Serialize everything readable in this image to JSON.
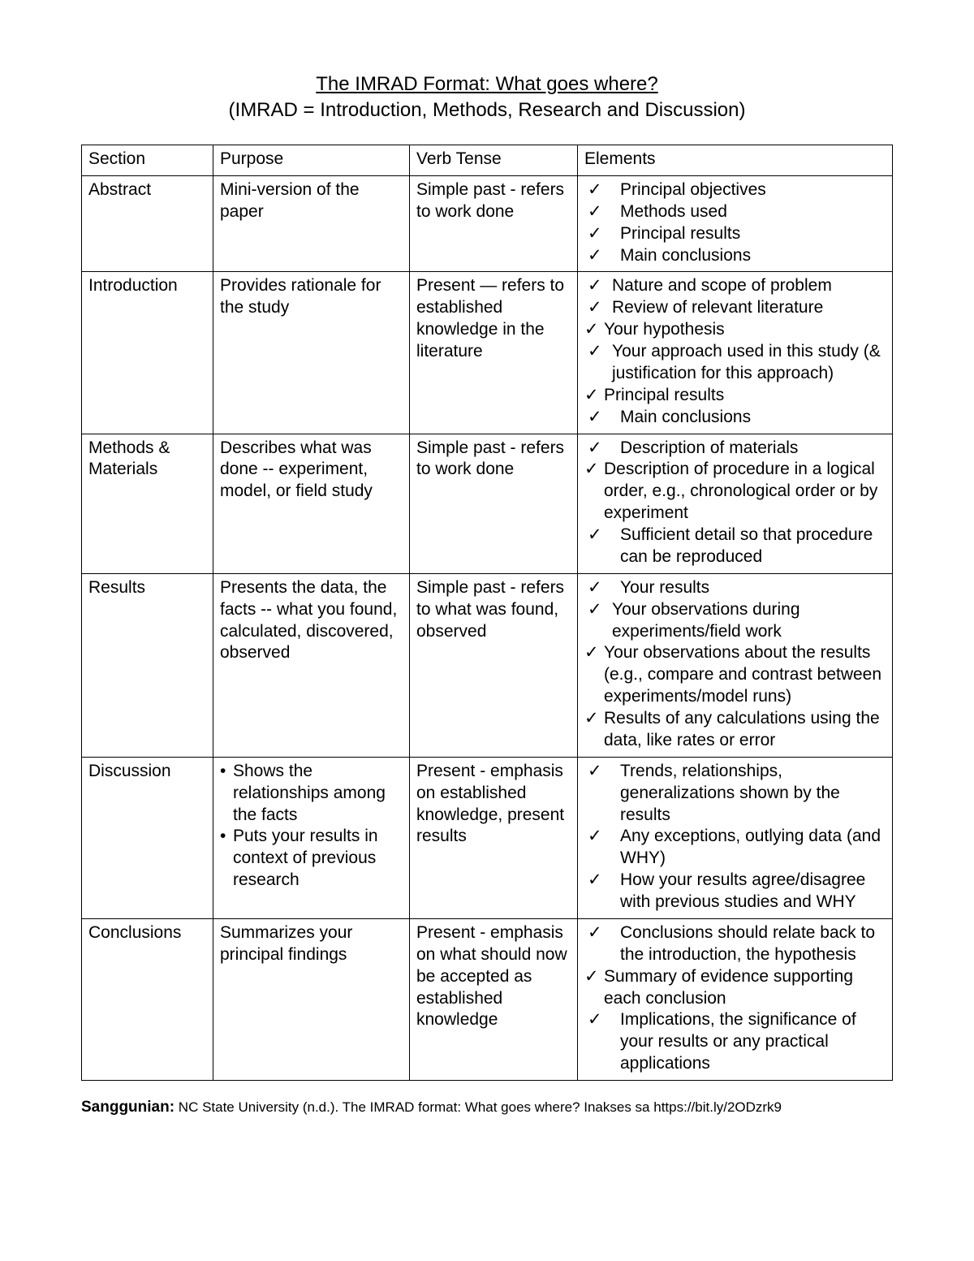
{
  "title": "The IMRAD Format: What goes where?",
  "subtitle": "(IMRAD = Introduction, Methods, Research and Discussion)",
  "headers": {
    "section": "Section",
    "purpose": "Purpose",
    "tense": "Verb Tense",
    "elements": "Elements"
  },
  "rows": [
    {
      "section": "Abstract",
      "purpose": "Mini-version of the paper",
      "tense": "Simple past - refers to work done",
      "elements": [
        "Principal objectives",
        "Methods used",
        "Principal results",
        "Main conclusions"
      ]
    },
    {
      "section": "Introduction",
      "purpose": "Provides rationale for the study",
      "tense": "Present — refers to established knowledge in the literature",
      "elements": [
        "Nature and scope of problem",
        "Review of relevant literature",
        "Your hypothesis",
        "Your approach used in this study (& justification for this approach)",
        "Principal results",
        "Main conclusions"
      ]
    },
    {
      "section": "Methods & Materials",
      "purpose": "Describes what was done -- experiment, model, or field study",
      "tense": "Simple past - refers to work done",
      "elements": [
        "Description of materials",
        "Description of procedure in a logical order, e.g., chronological order or by experiment",
        "Sufficient detail so that procedure can be reproduced"
      ]
    },
    {
      "section": "Results",
      "purpose": "Presents the data, the facts -- what you found, calculated, discovered, observed",
      "tense": "Simple past - refers to what was found, observed",
      "elements": [
        "Your results",
        "Your observations during experiments/field work",
        "Your observations about the results (e.g., compare and contrast between experiments/model runs)",
        "Results of any calculations using the data, like rates or error"
      ]
    },
    {
      "section": "Discussion",
      "purpose_bullets": [
        "Shows the relationships among the facts",
        "Puts your results in context of previous research"
      ],
      "tense": "Present - emphasis on established knowledge, present results",
      "elements": [
        "Trends, relationships, generalizations shown by the results",
        "Any exceptions, outlying data (and WHY)",
        "How your results agree/disagree with previous studies and WHY"
      ]
    },
    {
      "section": "Conclusions",
      "purpose": "Summarizes your principal findings",
      "tense": "Present - emphasis on what should now be accepted as established knowledge",
      "elements": [
        "Conclusions should relate back to the introduction, the hypothesis",
        "Summary of evidence supporting each conclusion",
        "Implications, the significance of your results or any practical applications"
      ]
    }
  ],
  "citation": {
    "label": "Sanggunian:",
    "text": " NC State University (n.d.). The IMRAD format: What goes where? Inakses sa https://bit.ly/2ODzrk9"
  },
  "style": {
    "check_glyph": "✓",
    "text_color": "#000000",
    "background_color": "#ffffff",
    "border_color": "#000000"
  }
}
